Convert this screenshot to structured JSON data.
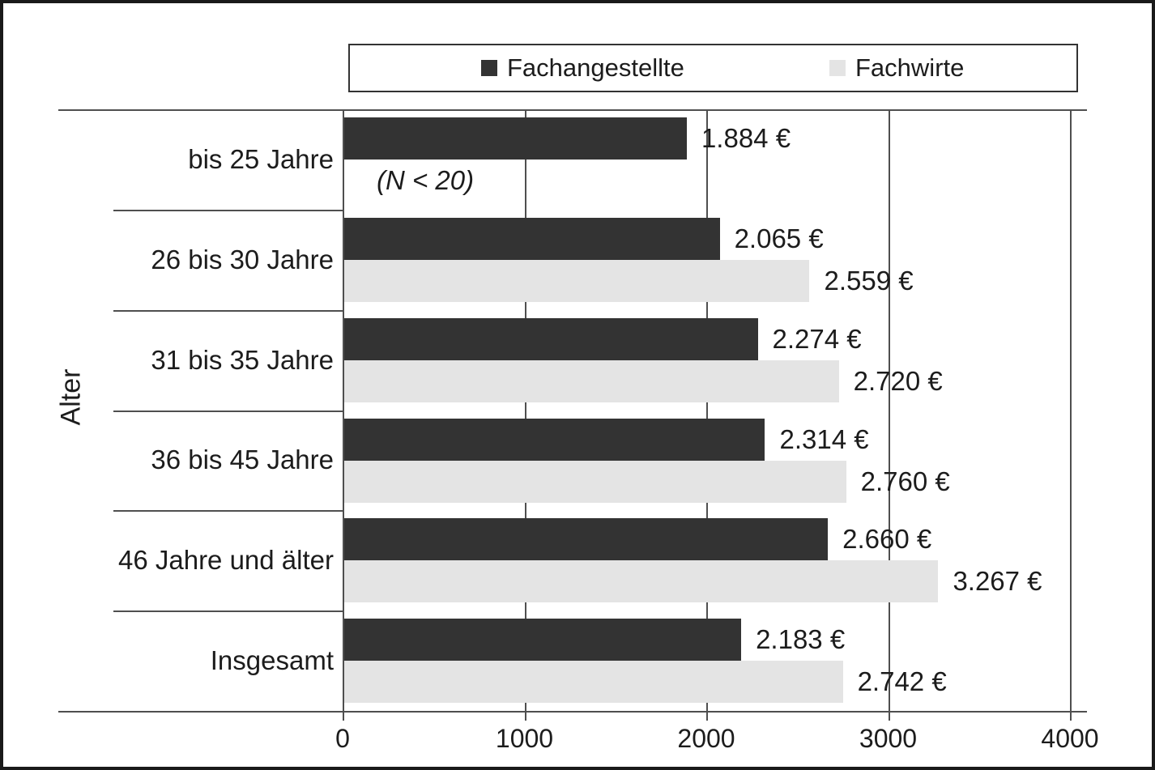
{
  "chart_data": {
    "type": "bar",
    "orientation": "horizontal",
    "title": "",
    "xlabel": "",
    "ylabel": "Alter",
    "xlim": [
      0,
      4000
    ],
    "xticks": [
      "0",
      "1000",
      "2000",
      "3000",
      "4000"
    ],
    "xtick_values": [
      0,
      1000,
      2000,
      3000,
      4000
    ],
    "grid": true,
    "legend_position": "top",
    "categories": [
      "bis 25 Jahre",
      "26 bis 30 Jahre",
      "31 bis 35 Jahre",
      "36 bis 45 Jahre",
      "46 Jahre und älter",
      "Insgesamt"
    ],
    "series": [
      {
        "name": "Fachangestellte",
        "color": "#333333",
        "values": [
          1884,
          2065,
          2274,
          2314,
          2660,
          2183
        ],
        "labels": [
          "1.884 €",
          "2.065 €",
          "2.274 €",
          "2.314 €",
          "2.660 €",
          "2.183 €"
        ]
      },
      {
        "name": "Fachwirte",
        "color": "#e4e4e4",
        "values": [
          null,
          2559,
          2720,
          2760,
          3267,
          2742
        ],
        "labels": [
          "(N < 20)",
          "2.559 €",
          "2.720 €",
          "2.760 €",
          "3.267 €",
          "2.742 €"
        ]
      }
    ],
    "annotations": [
      {
        "text": "(N < 20)",
        "category_index": 0,
        "series_index": 1,
        "style": "italic"
      }
    ]
  },
  "legend": {
    "items": [
      {
        "label": "Fachangestellte",
        "color": "#333333"
      },
      {
        "label": "Fachwirte",
        "color": "#e4e4e4"
      }
    ]
  },
  "colors": {
    "bar_dark": "#333333",
    "bar_light": "#e4e4e4",
    "line": "#4f4f4f",
    "text": "#1c1c1c",
    "frame_border": "#1a1a1a"
  }
}
